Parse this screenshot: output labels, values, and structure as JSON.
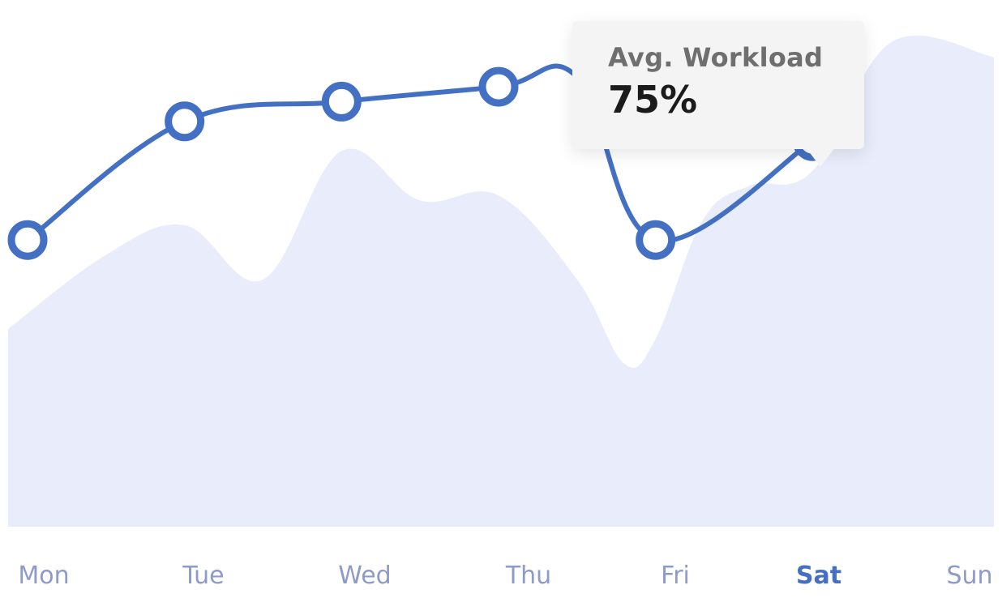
{
  "chart_data": {
    "type": "line",
    "categories": [
      "Mon",
      "Tue",
      "Wed",
      "Thu",
      "Fri",
      "Sat",
      "Sun"
    ],
    "active_category": "Sat",
    "series": [
      {
        "role": "line",
        "x": [
          0,
          1,
          2,
          3,
          3.5,
          4,
          5
        ],
        "values": [
          58,
          82,
          86,
          89,
          91,
          58,
          78
        ],
        "color": "#4470C4"
      },
      {
        "role": "area",
        "x": [
          0,
          0.5,
          1,
          1.5,
          2,
          2.5,
          3,
          3.5,
          3.8,
          4,
          4.3,
          4.6,
          5,
          5.5,
          6
        ],
        "values": [
          40,
          55,
          61,
          50,
          76,
          66,
          67,
          50,
          33,
          38,
          62,
          69,
          72,
          98,
          95
        ],
        "color": "#E9ECFA"
      }
    ],
    "ylim": [
      0,
      100
    ],
    "tooltip": {
      "label": "Avg. Workload",
      "value": "75%"
    },
    "grid": false,
    "legend": "none"
  }
}
